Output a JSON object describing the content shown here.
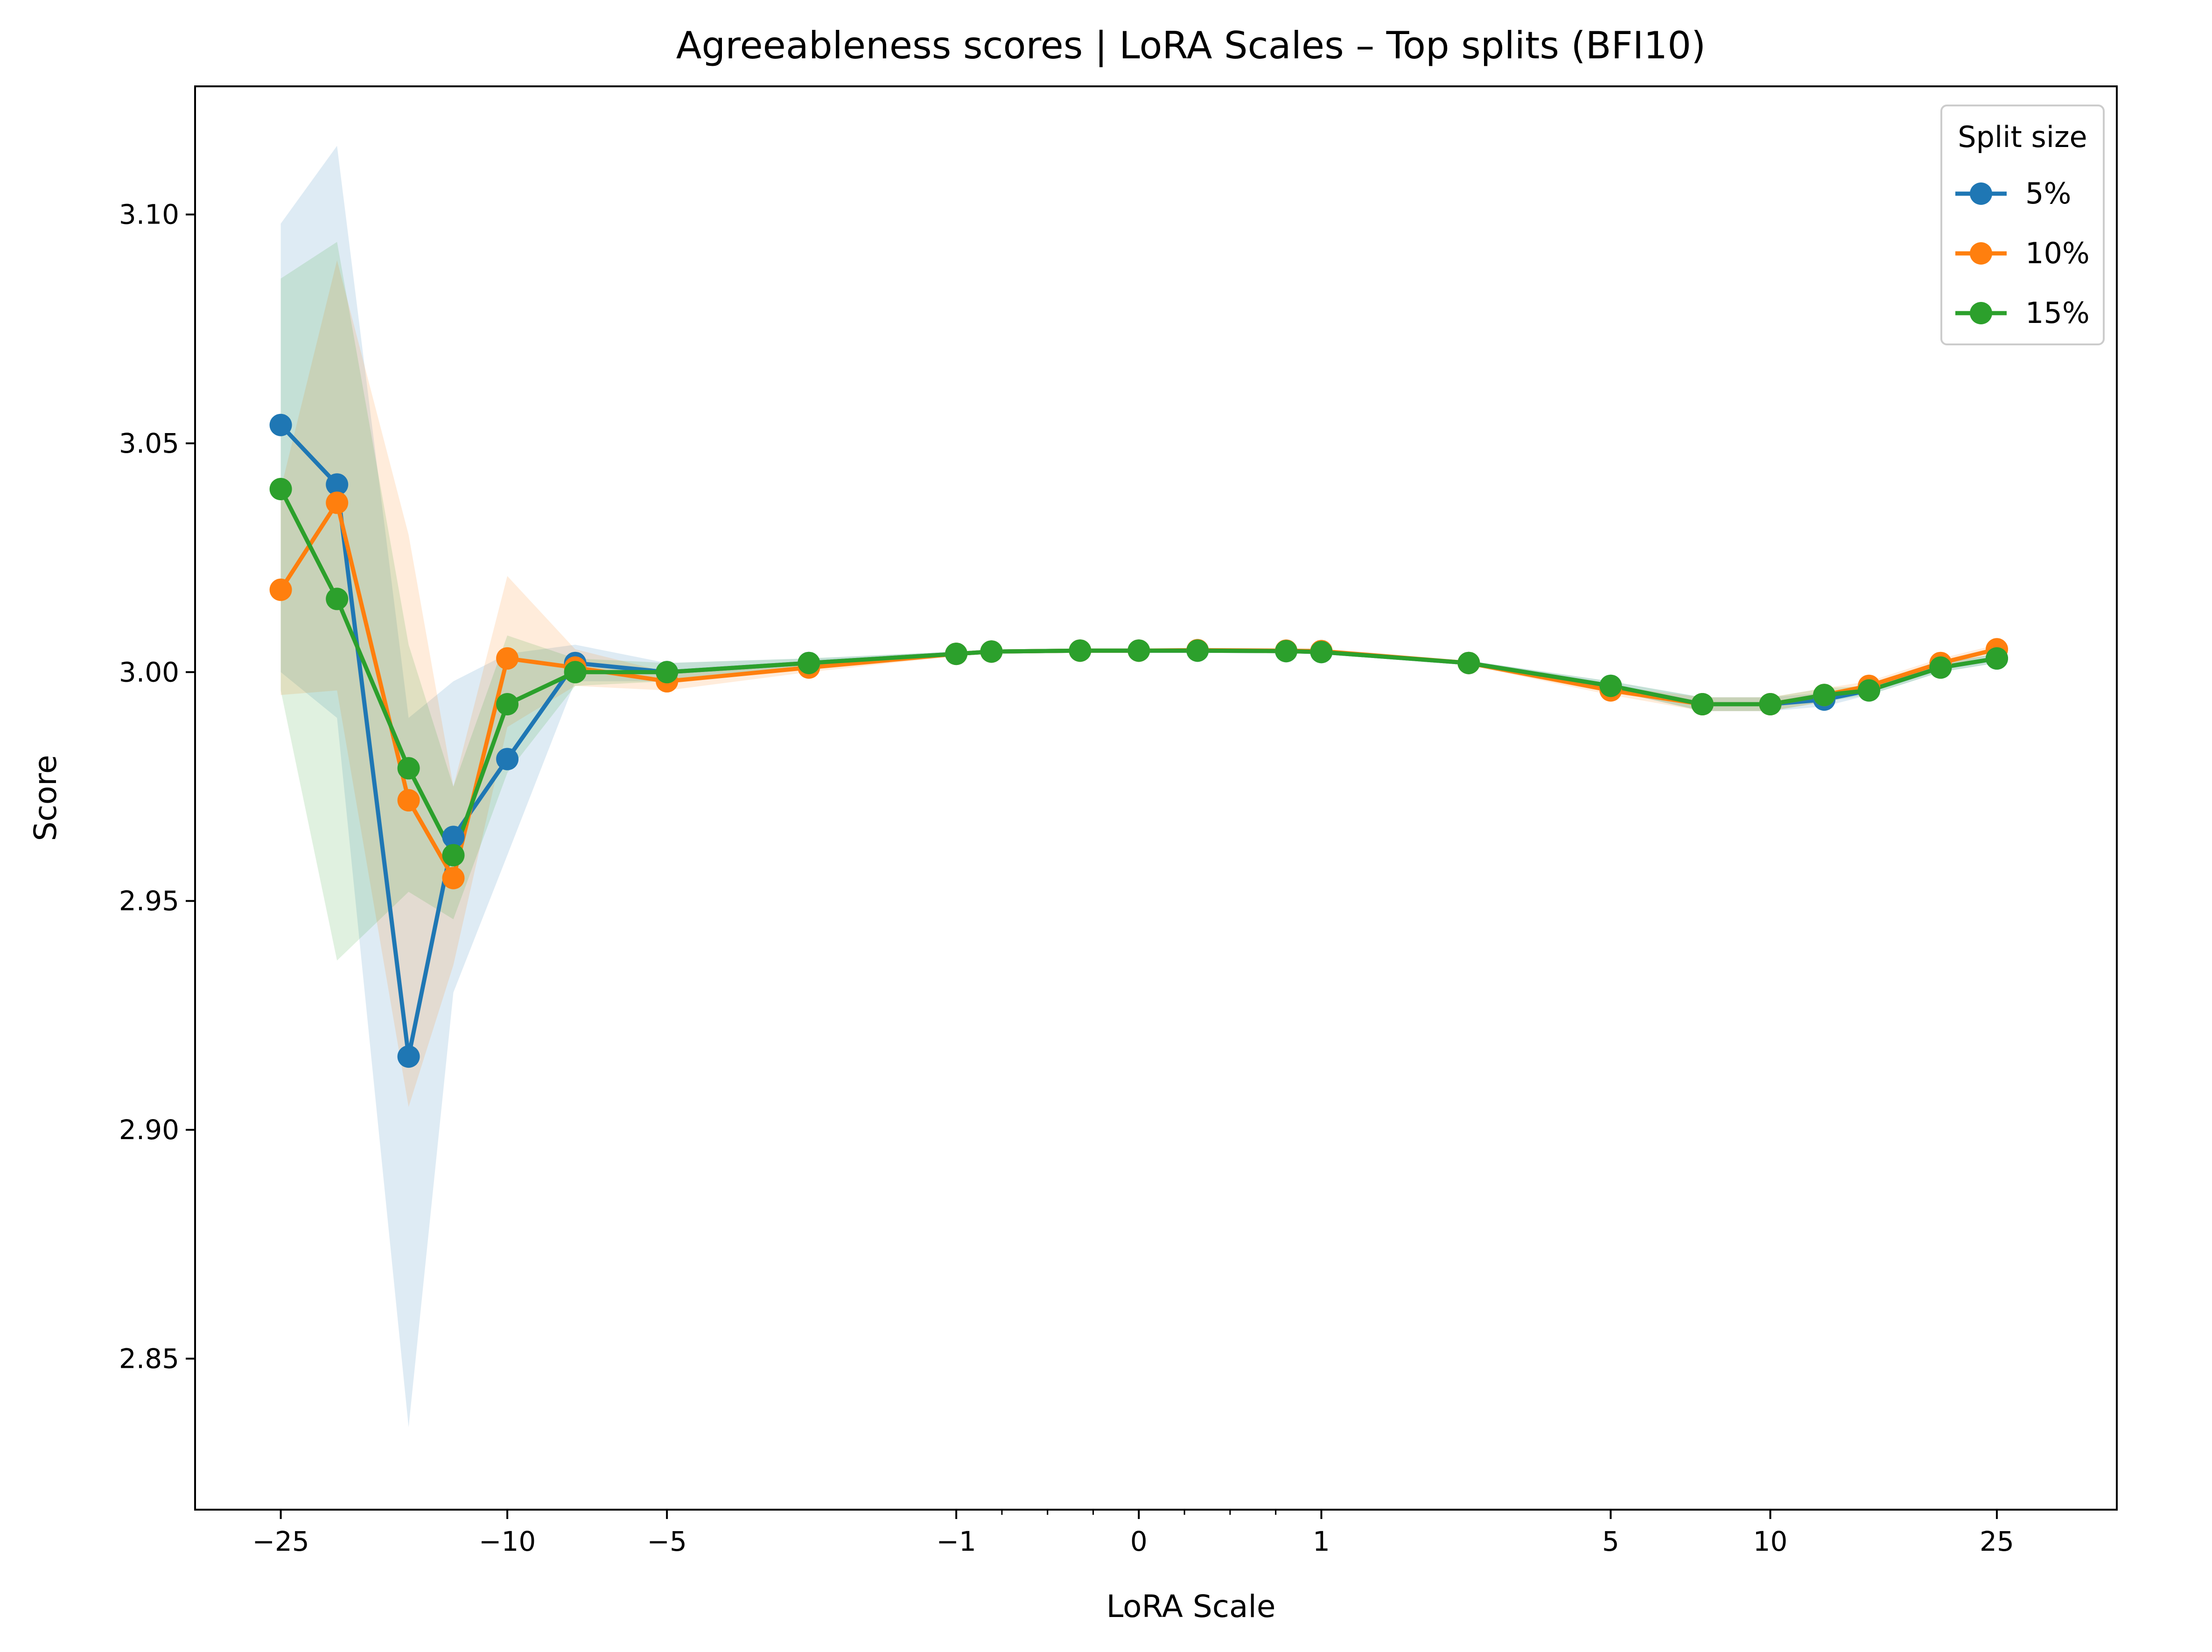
{
  "chart_data": {
    "type": "line",
    "title": "Agreeableness scores | LoRA Scales – Top splits (BFI10)",
    "xlabel": "LoRA Scale",
    "ylabel": "Score",
    "xscale": "symlog",
    "xlim": [
      -35,
      40
    ],
    "ylim": [
      2.817,
      3.128
    ],
    "x_ticks": [
      {
        "value": -25,
        "label": "−25"
      },
      {
        "value": -10,
        "label": "−10"
      },
      {
        "value": -5,
        "label": "−5"
      },
      {
        "value": -1,
        "label": "−1"
      },
      {
        "value": 0,
        "label": "0"
      },
      {
        "value": 1,
        "label": "1"
      },
      {
        "value": 5,
        "label": "5"
      },
      {
        "value": 10,
        "label": "10"
      },
      {
        "value": 25,
        "label": "25"
      }
    ],
    "y_ticks": [
      {
        "value": 2.85,
        "label": "2.85"
      },
      {
        "value": 2.9,
        "label": "2.90"
      },
      {
        "value": 2.95,
        "label": "2.95"
      },
      {
        "value": 3.0,
        "label": "3.00"
      },
      {
        "value": 3.05,
        "label": "3.05"
      },
      {
        "value": 3.1,
        "label": "3.10"
      }
    ],
    "grid": false,
    "legend": {
      "title": "Split size",
      "placement": "top-right"
    },
    "x": [
      -25,
      -20,
      -15,
      -12.5,
      -10,
      -7.5,
      -5,
      -2.5,
      -1,
      -0.75,
      -0.25,
      0,
      0.25,
      0.75,
      1,
      2.5,
      5,
      7.5,
      10,
      12.5,
      15,
      20,
      25
    ],
    "series": [
      {
        "name": "5%",
        "color": "#1f77b4",
        "values": [
          3.054,
          3.041,
          2.916,
          2.964,
          2.981,
          3.002,
          3.0,
          3.002,
          3.004,
          3.0045,
          3.0047,
          3.0047,
          3.0047,
          3.0046,
          3.0044,
          3.002,
          2.997,
          2.993,
          2.993,
          2.994,
          2.996,
          3.001,
          3.003
        ],
        "lower": [
          3.0,
          2.99,
          2.835,
          2.93,
          2.96,
          2.998,
          2.998,
          3.001,
          3.0035,
          3.0043,
          3.0046,
          3.0046,
          3.0046,
          3.0045,
          3.0042,
          3.0015,
          2.996,
          2.9915,
          2.9915,
          2.9925,
          2.995,
          3.0,
          3.002
        ],
        "upper": [
          3.098,
          3.115,
          2.99,
          2.998,
          3.004,
          3.006,
          3.002,
          3.003,
          3.0045,
          3.0047,
          3.0048,
          3.0048,
          3.0048,
          3.0047,
          3.0046,
          3.0025,
          2.998,
          2.9945,
          2.9945,
          2.9955,
          2.997,
          3.002,
          3.004
        ]
      },
      {
        "name": "10%",
        "color": "#ff7f0e",
        "values": [
          3.018,
          3.037,
          2.972,
          2.955,
          3.003,
          3.001,
          2.998,
          3.001,
          3.004,
          3.0045,
          3.0047,
          3.0047,
          3.0048,
          3.0047,
          3.0046,
          3.002,
          2.996,
          2.993,
          2.993,
          2.995,
          2.997,
          3.002,
          3.005
        ],
        "lower": [
          2.995,
          2.996,
          2.905,
          2.936,
          2.988,
          2.997,
          2.996,
          3.0,
          3.0035,
          3.0043,
          3.0046,
          3.0046,
          3.0047,
          3.0046,
          3.0044,
          3.0015,
          2.995,
          2.9915,
          2.9915,
          2.9935,
          2.996,
          3.001,
          3.004
        ],
        "upper": [
          3.04,
          3.09,
          3.03,
          2.975,
          3.021,
          3.005,
          3.0,
          3.002,
          3.0045,
          3.0047,
          3.0048,
          3.0048,
          3.0049,
          3.0048,
          3.0048,
          3.0025,
          2.997,
          2.9945,
          2.9945,
          2.9965,
          2.998,
          3.003,
          3.006
        ]
      },
      {
        "name": "15%",
        "color": "#2ca02c",
        "values": [
          3.04,
          3.016,
          2.979,
          2.96,
          2.993,
          3.0,
          3.0,
          3.002,
          3.004,
          3.0045,
          3.0047,
          3.0047,
          3.0047,
          3.0046,
          3.0044,
          3.002,
          2.997,
          2.993,
          2.993,
          2.995,
          2.996,
          3.001,
          3.003
        ],
        "lower": [
          2.996,
          2.937,
          2.952,
          2.946,
          2.978,
          2.997,
          2.998,
          3.001,
          3.0035,
          3.0043,
          3.0046,
          3.0046,
          3.0046,
          3.0045,
          3.0042,
          3.0015,
          2.996,
          2.9915,
          2.9915,
          2.9935,
          2.995,
          3.0,
          3.002
        ],
        "upper": [
          3.086,
          3.094,
          3.006,
          2.975,
          3.008,
          3.003,
          3.002,
          3.003,
          3.0045,
          3.0047,
          3.0048,
          3.0048,
          3.0048,
          3.0047,
          3.0046,
          3.0025,
          2.998,
          2.9945,
          2.9945,
          2.9965,
          2.997,
          3.002,
          3.004
        ]
      }
    ]
  }
}
